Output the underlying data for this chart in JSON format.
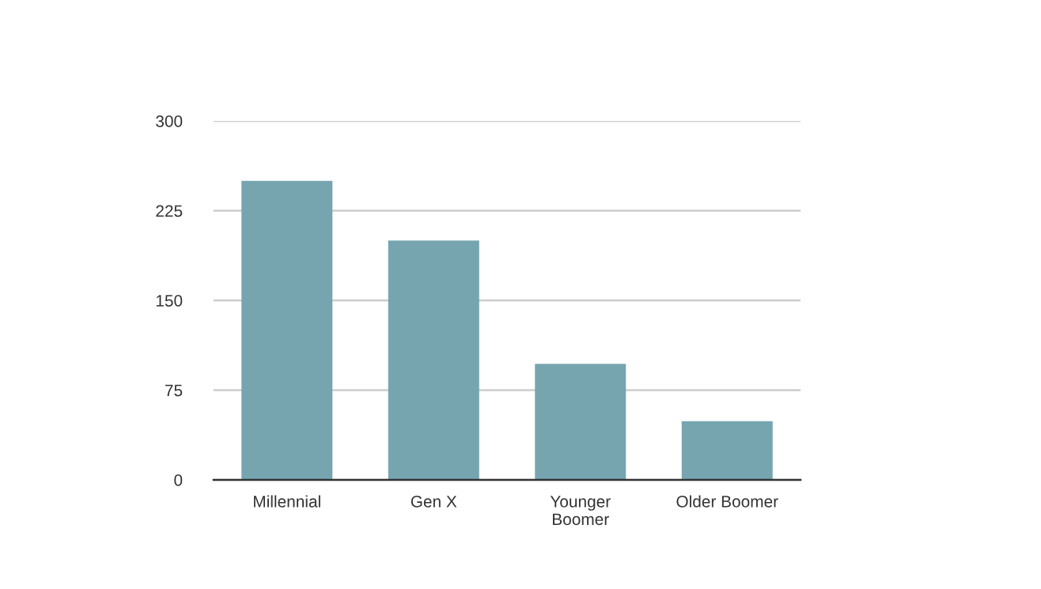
{
  "chart_data": {
    "type": "bar",
    "categories": [
      "Millennial",
      "Gen X",
      "Younger\nBoomer",
      "Older Boomer"
    ],
    "values": [
      250,
      200,
      97,
      49
    ],
    "color": "#76a5b0",
    "ylim": [
      0,
      300
    ],
    "yticks": [
      0,
      75,
      150,
      225,
      300
    ],
    "grid": "y"
  }
}
